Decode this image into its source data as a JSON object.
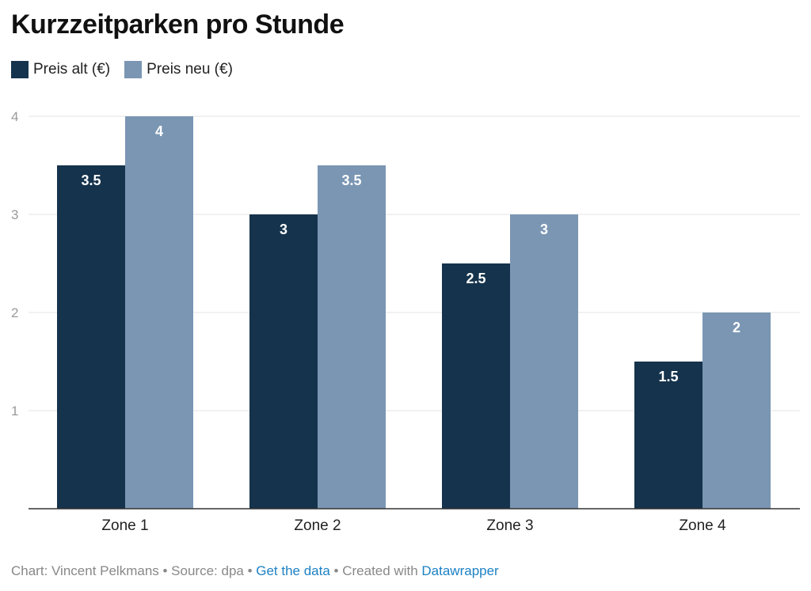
{
  "title": "Kurzzeitparken pro Stunde",
  "legend": [
    {
      "label": "Preis alt (€)",
      "color": "#15334c"
    },
    {
      "label": "Preis neu (€)",
      "color": "#7a96b3"
    }
  ],
  "footer": {
    "prefix": "Chart: Vincent Pelkmans • Source: dpa • ",
    "link1": "Get the data",
    "middle": " • Created with ",
    "link2": "Datawrapper"
  },
  "chart_data": {
    "type": "bar",
    "title": "Kurzzeitparken pro Stunde",
    "categories": [
      "Zone 1",
      "Zone 2",
      "Zone 3",
      "Zone 4"
    ],
    "series": [
      {
        "name": "Preis alt (€)",
        "color": "#15334c",
        "values": [
          3.5,
          3,
          2.5,
          1.5
        ],
        "value_labels": [
          "3.5",
          "3",
          "2.5",
          "1.5"
        ]
      },
      {
        "name": "Preis neu (€)",
        "color": "#7a96b3",
        "values": [
          4,
          3.5,
          3,
          2
        ],
        "value_labels": [
          "4",
          "3.5",
          "3",
          "2"
        ]
      }
    ],
    "ylim": [
      0,
      4
    ],
    "yticks": [
      1,
      2,
      3,
      4
    ],
    "ytick_labels": [
      "1",
      "2",
      "3",
      "4"
    ],
    "grid": true,
    "legend_position": "top-left",
    "xlabel": "",
    "ylabel": ""
  }
}
